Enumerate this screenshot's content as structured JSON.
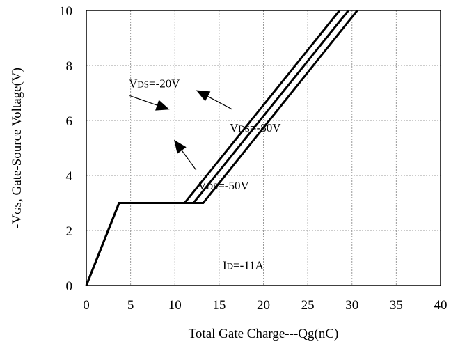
{
  "chart_data": {
    "type": "line",
    "xlabel": "Total Gate Charge---Qg(nC)",
    "ylabel": "-VGS, Gate-Source Voltage(V)",
    "xlim": [
      0,
      40
    ],
    "ylim": [
      0,
      10
    ],
    "x_ticks": [
      "0",
      "5",
      "10",
      "15",
      "20",
      "25",
      "30",
      "35",
      "40"
    ],
    "y_ticks": [
      "0",
      "2",
      "4",
      "6",
      "8",
      "10"
    ],
    "grid": true,
    "series": [
      {
        "name": "VDS=-20V",
        "x": [
          0,
          3.7,
          11.1,
          28.6
        ],
        "y": [
          0,
          3.0,
          3.0,
          10
        ]
      },
      {
        "name": "VDS=-50V",
        "x": [
          0,
          3.7,
          12.1,
          29.6
        ],
        "y": [
          0,
          3.0,
          3.0,
          10
        ]
      },
      {
        "name": "VDS=-80V",
        "x": [
          0,
          3.7,
          13.2,
          30.6
        ],
        "y": [
          0,
          3.0,
          3.0,
          10
        ]
      }
    ],
    "annotations": [
      {
        "label_main": "V",
        "label_sub": "DS",
        "label_rest": "=-20V",
        "text_at": [
          4.8,
          7.2
        ],
        "arrow_from": [
          4.9,
          6.9
        ],
        "arrow_to": [
          9.4,
          6.4
        ]
      },
      {
        "label_main": "V",
        "label_sub": "DS",
        "label_rest": "=-80V",
        "text_at": [
          16.2,
          5.6
        ],
        "arrow_from": [
          16.5,
          6.4
        ],
        "arrow_to": [
          12.4,
          7.1
        ]
      },
      {
        "label_main": "V",
        "label_sub": "DS",
        "label_rest": "=-50V",
        "text_at": [
          12.6,
          3.5
        ],
        "arrow_from": [
          12.4,
          4.2
        ],
        "arrow_to": [
          9.9,
          5.3
        ]
      },
      {
        "label_main": "I",
        "label_sub": "D",
        "label_rest": "=-11A",
        "text_at": [
          15.4,
          0.6
        ]
      }
    ]
  }
}
